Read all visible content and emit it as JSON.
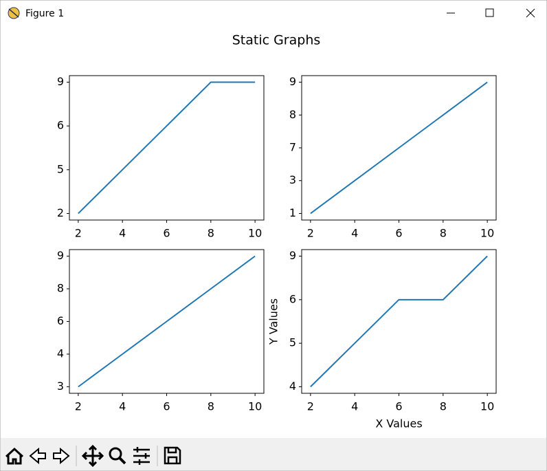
{
  "window": {
    "title": "Figure 1"
  },
  "suptitle": "Static Graphs",
  "chart_data": [
    {
      "type": "line",
      "x": [
        2,
        4,
        6,
        8,
        10
      ],
      "values": [
        0,
        1,
        2,
        3,
        3
      ],
      "color": "#1f77b4",
      "xlim": [
        1.6,
        10.4
      ],
      "xticks": [
        2,
        4,
        6,
        8,
        10
      ],
      "ylim": [
        -0.15,
        3.15
      ],
      "yticks": [
        {
          "value": 0,
          "label": "2"
        },
        {
          "value": 1,
          "label": "5"
        },
        {
          "value": 2,
          "label": "6"
        },
        {
          "value": 3,
          "label": "9"
        }
      ]
    },
    {
      "type": "line",
      "x": [
        2,
        4,
        6,
        8,
        10
      ],
      "values": [
        0,
        1,
        2,
        3,
        4
      ],
      "color": "#1f77b4",
      "xlim": [
        1.6,
        10.4
      ],
      "xticks": [
        2,
        4,
        6,
        8,
        10
      ],
      "ylim": [
        -0.2,
        4.2
      ],
      "yticks": [
        {
          "value": 0,
          "label": "1"
        },
        {
          "value": 1,
          "label": "3"
        },
        {
          "value": 2,
          "label": "7"
        },
        {
          "value": 3,
          "label": "8"
        },
        {
          "value": 4,
          "label": "9"
        }
      ]
    },
    {
      "type": "line",
      "x": [
        2,
        4,
        6,
        8,
        10
      ],
      "values": [
        0,
        1,
        2,
        3,
        4
      ],
      "color": "#1f77b4",
      "xlim": [
        1.6,
        10.4
      ],
      "xticks": [
        2,
        4,
        6,
        8,
        10
      ],
      "ylim": [
        -0.2,
        4.2
      ],
      "yticks": [
        {
          "value": 0,
          "label": "3"
        },
        {
          "value": 1,
          "label": "4"
        },
        {
          "value": 2,
          "label": "6"
        },
        {
          "value": 3,
          "label": "8"
        },
        {
          "value": 4,
          "label": "9"
        }
      ]
    },
    {
      "type": "line",
      "x": [
        2,
        4,
        6,
        8,
        10
      ],
      "values": [
        0,
        1,
        2,
        2,
        3
      ],
      "color": "#1f77b4",
      "xlim": [
        1.6,
        10.4
      ],
      "xticks": [
        2,
        4,
        6,
        8,
        10
      ],
      "ylim": [
        -0.15,
        3.15
      ],
      "yticks": [
        {
          "value": 0,
          "label": "4"
        },
        {
          "value": 1,
          "label": "5"
        },
        {
          "value": 2,
          "label": "6"
        },
        {
          "value": 3,
          "label": "9"
        }
      ],
      "xlabel": "X Values",
      "ylabel": "Y Values"
    }
  ]
}
